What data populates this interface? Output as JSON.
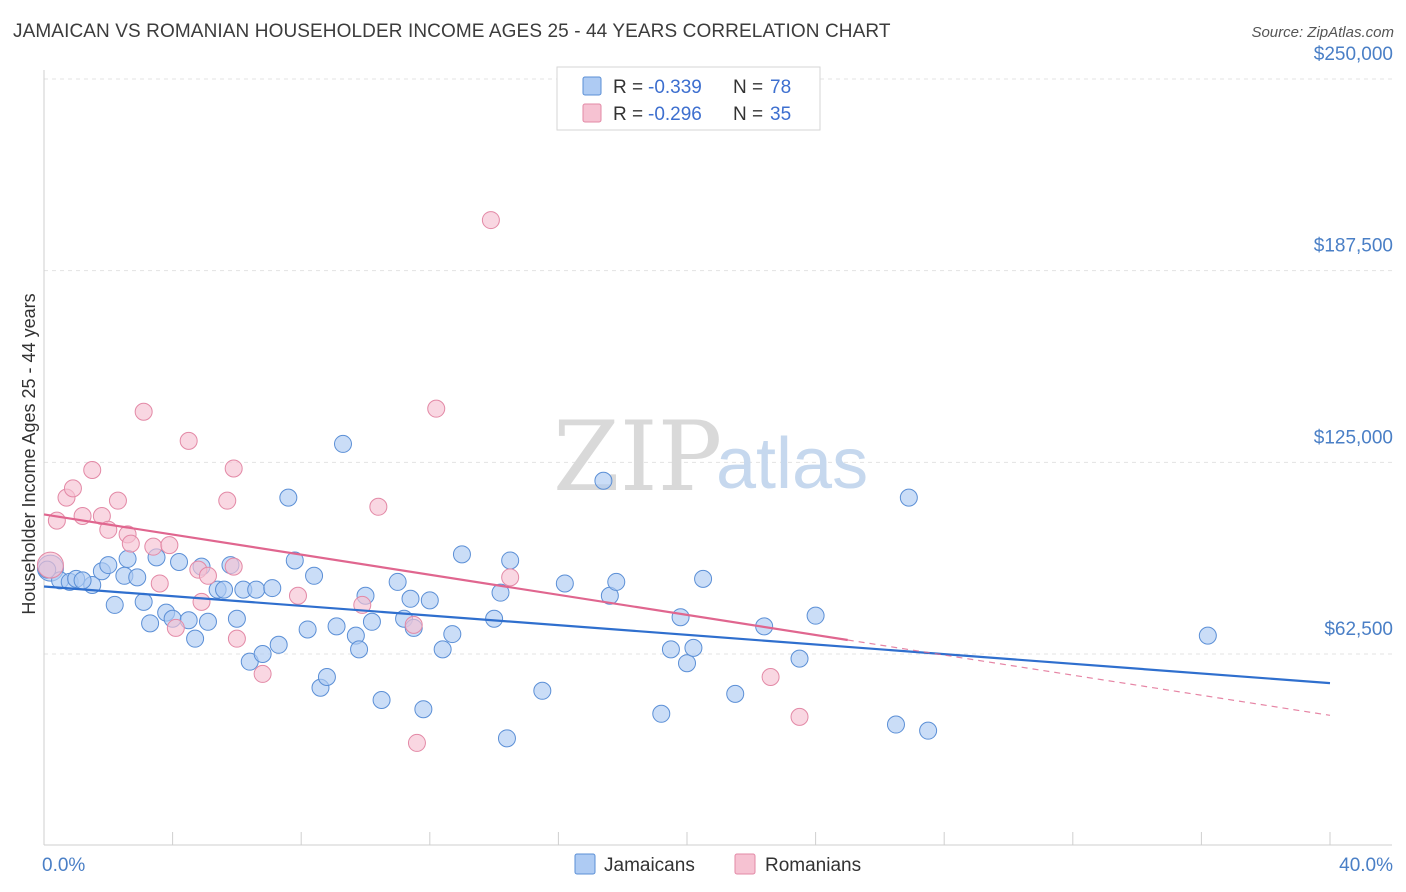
{
  "title": "JAMAICAN VS ROMANIAN HOUSEHOLDER INCOME AGES 25 - 44 YEARS CORRELATION CHART",
  "source": "Source: ZipAtlas.com",
  "watermark": {
    "zip": "ZIP",
    "atlas": "atlas"
  },
  "colors": {
    "blue_fill": "#aecbf3",
    "blue_stroke": "#5b8fd6",
    "blue_line": "#2f6fce",
    "pink_fill": "#f6c2d2",
    "pink_stroke": "#e389a6",
    "pink_line": "#e0668f",
    "tick_label": "#4a7fc6",
    "grid": "#e3e3e3"
  },
  "stats_box": {
    "rows": [
      {
        "r_label": "R =",
        "r_value": "-0.339",
        "n_label": "N =",
        "n_value": "78"
      },
      {
        "r_label": "R =",
        "r_value": "-0.296",
        "n_label": "N =",
        "n_value": "35"
      }
    ]
  },
  "chart_data": {
    "type": "scatter",
    "title": "JAMAICAN VS ROMANIAN HOUSEHOLDER INCOME AGES 25 - 44 YEARS CORRELATION CHART",
    "xlabel": "",
    "ylabel": "Householder Income Ages 25 - 44 years",
    "xlim": [
      0,
      40
    ],
    "ylim": [
      15000,
      262500
    ],
    "x_tick_labels": [
      {
        "value": 0,
        "label": "0.0%"
      },
      {
        "value": 40,
        "label": "40.0%"
      }
    ],
    "y_ticks": [
      {
        "value": 62500,
        "label": "$62,500"
      },
      {
        "value": 125000,
        "label": "$125,000"
      },
      {
        "value": 187500,
        "label": "$187,500"
      },
      {
        "value": 250000,
        "label": "$250,000"
      }
    ],
    "grid": true,
    "legend_position": "bottom-center",
    "series": [
      {
        "name": "Jamaicans",
        "color": "#aecbf3",
        "r": -0.339,
        "n": 78,
        "trend": {
          "x0": 0,
          "y0": 84500,
          "x1": 40,
          "y1": 53000,
          "dashed_from": null
        },
        "points": [
          [
            0.2,
            90500
          ],
          [
            0.5,
            86500
          ],
          [
            0.8,
            86000
          ],
          [
            1.0,
            87000
          ],
          [
            1.5,
            85000
          ],
          [
            1.8,
            89500
          ],
          [
            2.0,
            91500
          ],
          [
            2.2,
            78500
          ],
          [
            2.5,
            88000
          ],
          [
            2.6,
            93500
          ],
          [
            2.9,
            87500
          ],
          [
            3.1,
            79500
          ],
          [
            3.3,
            72500
          ],
          [
            3.5,
            94000
          ],
          [
            3.8,
            76000
          ],
          [
            4.0,
            74000
          ],
          [
            4.2,
            92500
          ],
          [
            4.5,
            73500
          ],
          [
            4.7,
            67500
          ],
          [
            4.9,
            91000
          ],
          [
            5.1,
            73000
          ],
          [
            5.4,
            83500
          ],
          [
            5.6,
            83500
          ],
          [
            5.8,
            91500
          ],
          [
            6.0,
            74000
          ],
          [
            6.2,
            83500
          ],
          [
            6.4,
            60000
          ],
          [
            6.6,
            83500
          ],
          [
            6.8,
            62500
          ],
          [
            7.1,
            84000
          ],
          [
            7.3,
            65500
          ],
          [
            7.6,
            113500
          ],
          [
            7.8,
            93000
          ],
          [
            8.2,
            70500
          ],
          [
            8.4,
            88000
          ],
          [
            8.6,
            51500
          ],
          [
            8.8,
            55000
          ],
          [
            9.1,
            71500
          ],
          [
            9.3,
            131000
          ],
          [
            9.7,
            68500
          ],
          [
            9.8,
            64000
          ],
          [
            10.0,
            81500
          ],
          [
            10.2,
            73000
          ],
          [
            10.5,
            47500
          ],
          [
            11.0,
            86000
          ],
          [
            11.2,
            74000
          ],
          [
            11.4,
            80500
          ],
          [
            11.5,
            71000
          ],
          [
            11.8,
            44500
          ],
          [
            12.0,
            80000
          ],
          [
            12.4,
            64000
          ],
          [
            12.7,
            69000
          ],
          [
            13.0,
            95000
          ],
          [
            14.0,
            74000
          ],
          [
            14.2,
            82500
          ],
          [
            14.4,
            35000
          ],
          [
            14.5,
            93000
          ],
          [
            15.5,
            50500
          ],
          [
            16.2,
            85500
          ],
          [
            17.4,
            119000
          ],
          [
            17.6,
            81500
          ],
          [
            17.8,
            86000
          ],
          [
            19.2,
            43000
          ],
          [
            19.5,
            64000
          ],
          [
            19.8,
            74500
          ],
          [
            20.0,
            59500
          ],
          [
            20.2,
            64500
          ],
          [
            20.5,
            87000
          ],
          [
            21.5,
            49500
          ],
          [
            22.4,
            71500
          ],
          [
            23.5,
            61000
          ],
          [
            24.0,
            75000
          ],
          [
            26.5,
            39500
          ],
          [
            26.9,
            113500
          ],
          [
            27.5,
            37500
          ],
          [
            36.2,
            68500
          ],
          [
            0.1,
            90000
          ],
          [
            1.2,
            86500
          ]
        ]
      },
      {
        "name": "Romanians",
        "color": "#f6c2d2",
        "r": -0.296,
        "n": 35,
        "trend": {
          "x0": 0,
          "y0": 108000,
          "x1": 40,
          "y1": 42500,
          "dashed_from": 25.0
        },
        "points": [
          [
            0.2,
            91500
          ],
          [
            0.4,
            106000
          ],
          [
            0.7,
            113500
          ],
          [
            0.9,
            116500
          ],
          [
            1.2,
            107500
          ],
          [
            1.5,
            122500
          ],
          [
            1.8,
            107500
          ],
          [
            2.0,
            103000
          ],
          [
            2.3,
            112500
          ],
          [
            2.6,
            101500
          ],
          [
            2.7,
            98500
          ],
          [
            3.1,
            141500
          ],
          [
            3.4,
            97500
          ],
          [
            3.6,
            85500
          ],
          [
            3.9,
            98000
          ],
          [
            4.1,
            71000
          ],
          [
            4.5,
            132000
          ],
          [
            4.8,
            90000
          ],
          [
            4.9,
            79500
          ],
          [
            5.1,
            88000
          ],
          [
            5.7,
            112500
          ],
          [
            5.9,
            91000
          ],
          [
            5.9,
            123000
          ],
          [
            6.0,
            67500
          ],
          [
            6.8,
            56000
          ],
          [
            7.9,
            81500
          ],
          [
            9.9,
            78500
          ],
          [
            10.4,
            110500
          ],
          [
            11.5,
            72000
          ],
          [
            11.6,
            33500
          ],
          [
            12.2,
            142500
          ],
          [
            13.9,
            204000
          ],
          [
            14.5,
            87500
          ],
          [
            22.6,
            55000
          ],
          [
            23.5,
            42000
          ]
        ]
      }
    ]
  }
}
